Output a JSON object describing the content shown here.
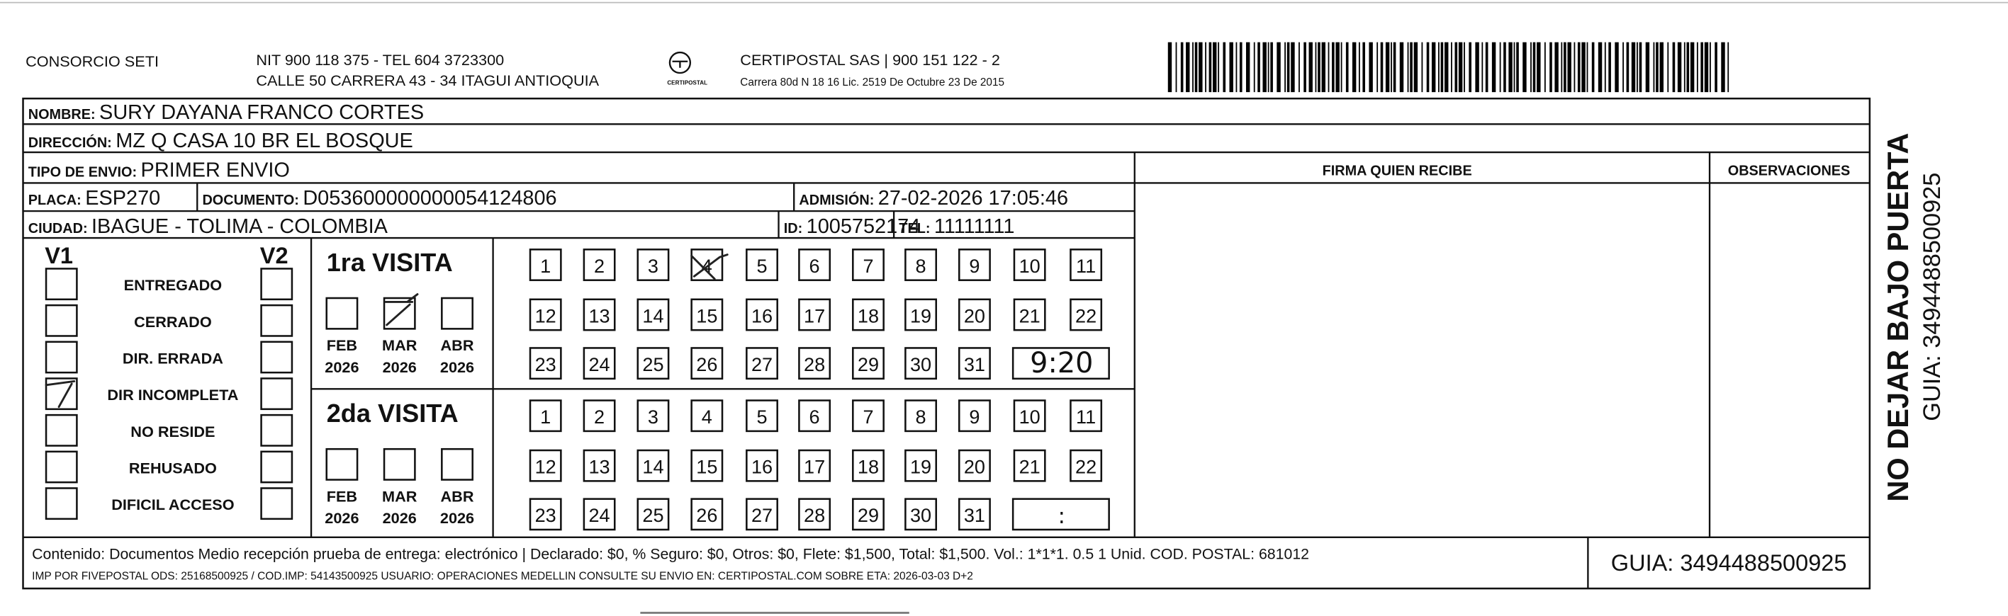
{
  "header": {
    "company": "CONSORCIO SETI",
    "nit": "NIT 900 118 375 - TEL 604 3723300",
    "address": "CALLE 50 CARRERA 43 - 34 ITAGUI ANTIOQUIA",
    "logo_text": "CERTIPOSTAL",
    "carrier": "CERTIPOSTAL SAS | 900 151 122 - 2",
    "carrier_address": "Carrera 80d N 18 16  Lic. 2519 De Octubre 23 De 2015"
  },
  "recipient": {
    "nombre": {
      "label": "NOMBRE:",
      "value": "SURY DAYANA FRANCO CORTES"
    },
    "direccion": {
      "label": "DIRECCIÓN:",
      "value": "MZ Q CASA 10 BR EL BOSQUE"
    },
    "tipo_envio": {
      "label": "TIPO DE ENVIO:",
      "value": "PRIMER ENVIO"
    },
    "placa": {
      "label": "PLACA:",
      "value": "ESP270"
    },
    "documento": {
      "label": "DOCUMENTO:",
      "value": "D053600000000054124806"
    },
    "admision": {
      "label": "ADMISIÓN:",
      "value": "27-02-2026 17:05:46"
    },
    "ciudad": {
      "label": "CIUDAD:",
      "value": "IBAGUE - TOLIMA - COLOMBIA"
    },
    "id": {
      "label": "ID:",
      "value": "1005752174"
    },
    "tel": {
      "label": "TEL:",
      "value": "11111111"
    }
  },
  "signature_label": "FIRMA QUIEN RECIBE",
  "observations_label": "OBSERVACIONES",
  "status": {
    "v1": "V1",
    "v2": "V2",
    "reasons": [
      "ENTREGADO",
      "CERRADO",
      "DIR. ERRADA",
      "DIR INCOMPLETA",
      "NO RESIDE",
      "REHUSADO",
      "DIFICIL ACCESO"
    ]
  },
  "visits": [
    {
      "title": "1ra VISITA",
      "months": [
        {
          "month": "FEB",
          "year": "2026"
        },
        {
          "month": "MAR",
          "year": "2026"
        },
        {
          "month": "ABR",
          "year": "2026"
        }
      ],
      "days": [
        "1",
        "2",
        "3",
        "4",
        "5",
        "6",
        "7",
        "8",
        "9",
        "10",
        "11",
        "12",
        "13",
        "14",
        "15",
        "16",
        "17",
        "18",
        "19",
        "20",
        "21",
        "22",
        "23",
        "24",
        "25",
        "26",
        "27",
        "28",
        "29",
        "30",
        "31"
      ],
      "time": "9:20"
    },
    {
      "title": "2da VISITA",
      "months": [
        {
          "month": "FEB",
          "year": "2026"
        },
        {
          "month": "MAR",
          "year": "2026"
        },
        {
          "month": "ABR",
          "year": "2026"
        }
      ],
      "days": [
        "1",
        "2",
        "3",
        "4",
        "5",
        "6",
        "7",
        "8",
        "9",
        "10",
        "11",
        "12",
        "13",
        "14",
        "15",
        "16",
        "17",
        "18",
        "19",
        "20",
        "21",
        "22",
        "23",
        "24",
        "25",
        "26",
        "27",
        "28",
        "29",
        "30",
        "31"
      ],
      "time": ":"
    }
  ],
  "footer": {
    "content": "Contenido: Documentos Medio recepción prueba de entrega: electrónico | Declarado: $0, % Seguro: $0, Otros: $0, Flete: $1,500, Total: $1,500. Vol.: 1*1*1. 0.5  1 Unid. COD. POSTAL: 681012",
    "imp": "IMP POR FIVEPOSTAL ODS: 25168500925 / COD.IMP: 54143500925 USUARIO: OPERACIONES MEDELLIN CONSULTE SU ENVIO EN: CERTIPOSTAL.COM SOBRE ETA: 2026-03-03 D+2",
    "guia": "GUIA: 3494488500925"
  },
  "side": {
    "notice": "NO DEJAR BAJO PUERTA",
    "guia": "GUIA: 3494488500925"
  }
}
